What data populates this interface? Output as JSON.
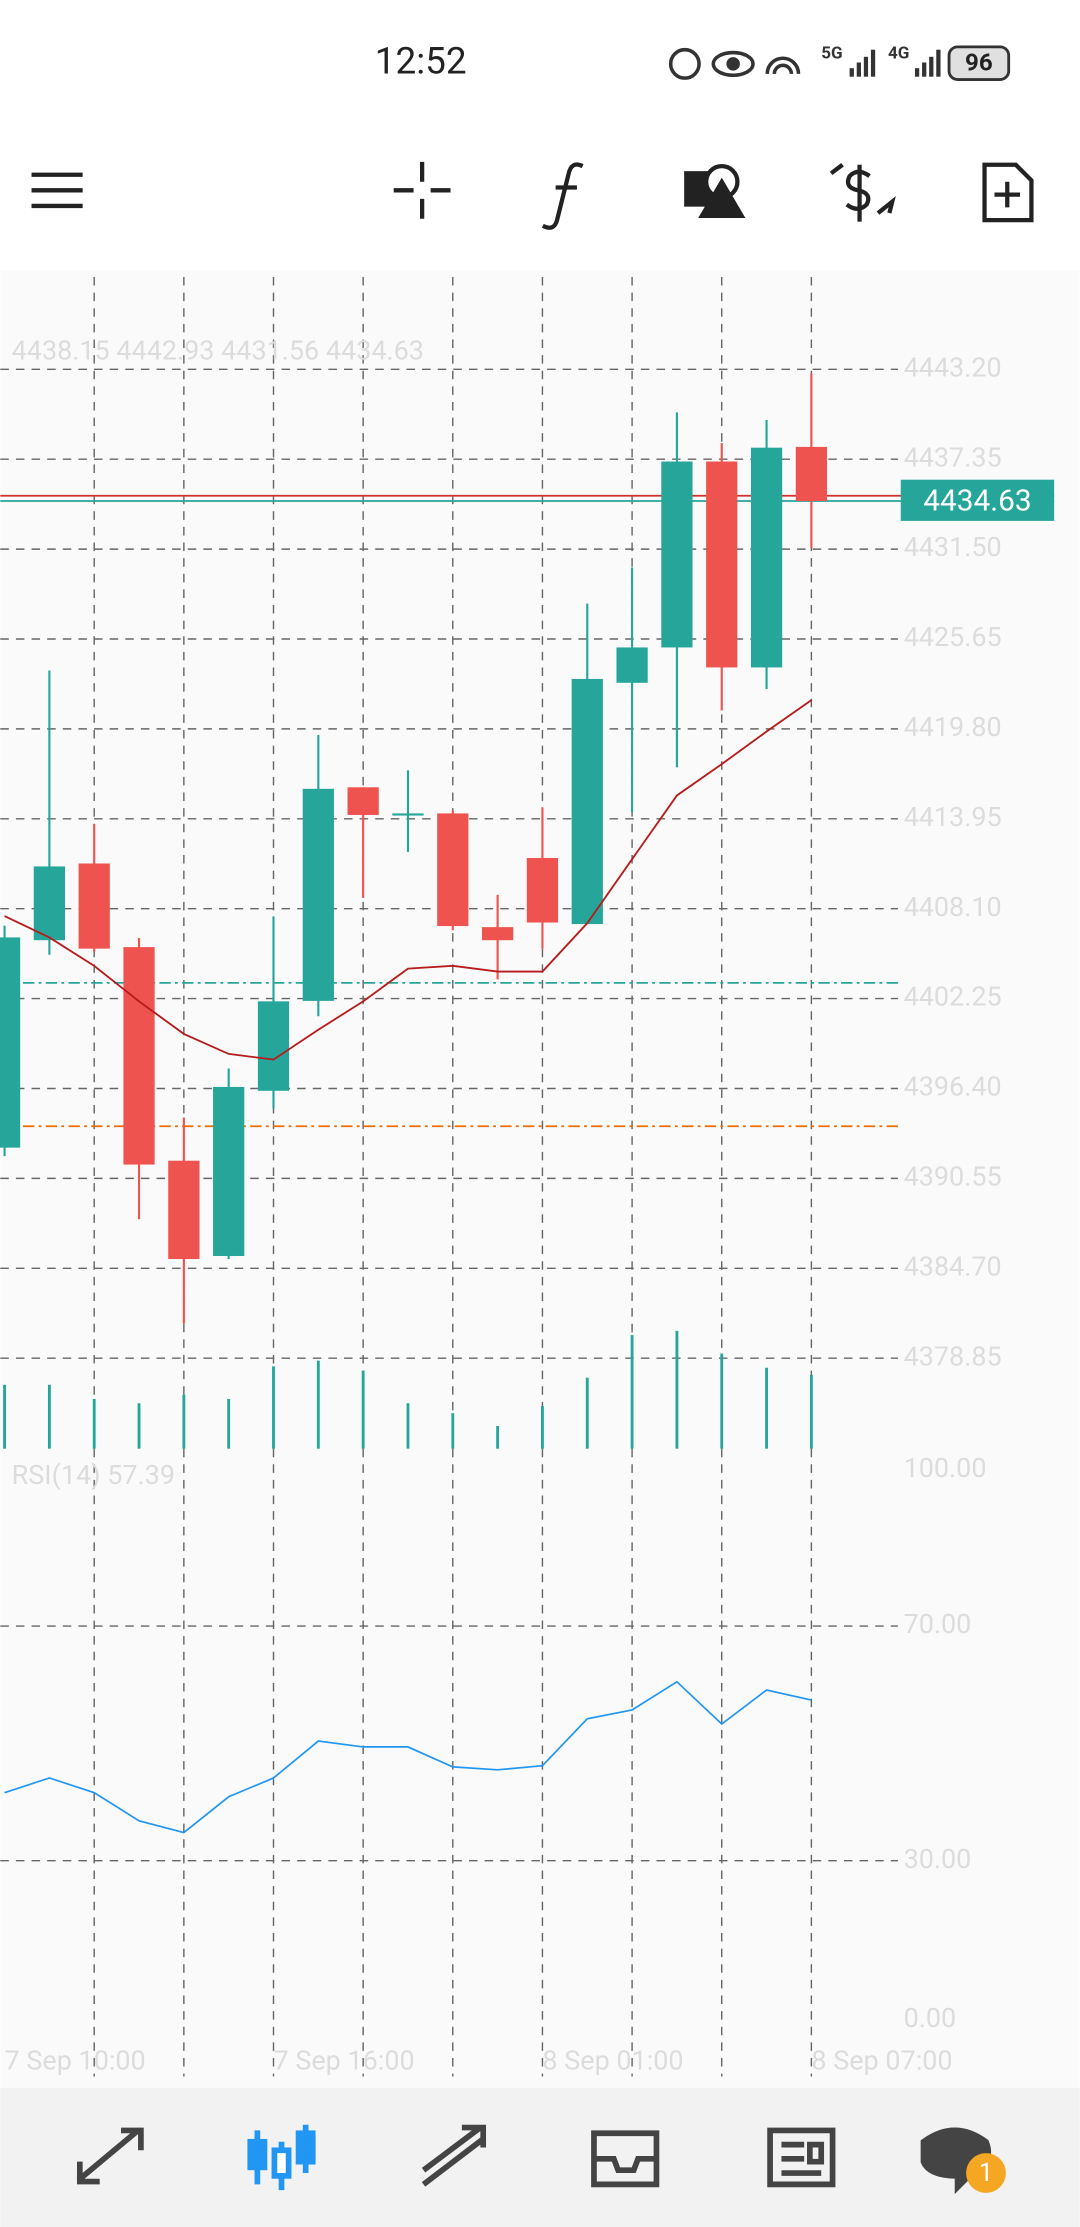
{
  "status_bar": {
    "time": "12:52",
    "network": [
      "5G",
      "4G"
    ],
    "battery": "96"
  },
  "chart_data": [
    {
      "type": "candlestick",
      "title": "4438.15 4442.93 4431.56 4434.63",
      "categories": [
        "7 Sep 10:00",
        null,
        null,
        null,
        null,
        null,
        "7 Sep 16:00",
        null,
        null,
        null,
        null,
        null,
        "8 Sep 01:00",
        null,
        null,
        null,
        null,
        null,
        "8 Sep 07:00"
      ],
      "open": [
        4392.55,
        4406.05,
        4411.04,
        4405.6,
        4391.7,
        4385.5,
        4396.25,
        4402.1,
        4416.0,
        4414.3,
        4414.3,
        4406.9,
        4411.4,
        4407.1,
        4422.8,
        4425.1,
        4437.2,
        4423.8,
        4438.15
      ],
      "high": [
        4407.0,
        4423.6,
        4413.6,
        4406.2,
        4394.5,
        4397.7,
        4407.6,
        4419.4,
        4416.0,
        4417.1,
        4414.5,
        4409.0,
        4414.7,
        4427.95,
        4430.3,
        4440.4,
        4438.4,
        4439.9,
        4442.93
      ],
      "low": [
        4392.0,
        4405.1,
        4405.3,
        4387.9,
        4381.1,
        4385.3,
        4395.1,
        4401.1,
        4408.8,
        4411.8,
        4406.7,
        4403.5,
        4405.5,
        4407.1,
        4414.4,
        4417.3,
        4421.0,
        4422.4,
        4431.56
      ],
      "close": [
        4406.23,
        4410.85,
        4405.5,
        4391.45,
        4385.3,
        4396.5,
        4402.07,
        4415.9,
        4414.2,
        4414.3,
        4406.97,
        4406.05,
        4407.2,
        4423.05,
        4425.1,
        4437.2,
        4423.8,
        4438.1,
        4434.63
      ],
      "up_color": "#26a69a",
      "down_color": "#ef5350",
      "moving_average": {
        "color": "#b71c1c",
        "values": [
          4407.62,
          4406.23,
          4404.38,
          4402.07,
          4399.95,
          4398.65,
          4398.28,
          4400.22,
          4402.07,
          4404.2,
          4404.38,
          4404.01,
          4404.01,
          4407.16,
          4411.32,
          4415.47,
          4417.51,
          4419.63,
          4421.67
        ]
      },
      "order_lines": [
        {
          "value": 4434.97,
          "color": "#d32f2f"
        },
        {
          "value": 4434.63,
          "color": "#26a69a"
        },
        {
          "value": 4403.27,
          "color": "#26a69a"
        },
        {
          "value": 4393.94,
          "color": "#ef6c00"
        }
      ],
      "ylim": [
        4372.96,
        4449.21
      ],
      "yticks": [
        {
          "value": 4443.2,
          "label": "4443.20"
        },
        4437.35,
        {
          "value": 4431.5,
          "label": "4431.50"
        },
        4425.65,
        {
          "value": 4419.8,
          "label": "4419.80"
        },
        4413.95,
        {
          "value": 4408.1,
          "label": "4408.10"
        },
        4402.25,
        {
          "value": 4396.4,
          "label": "4396.40"
        },
        4390.55,
        {
          "value": 4384.7,
          "label": "4384.70"
        },
        4378.85
      ],
      "grid": true
    },
    {
      "type": "bar",
      "color": "#26a69a",
      "values": [
        45,
        45,
        35,
        32,
        38,
        35,
        58,
        62,
        55,
        32,
        25,
        16,
        30,
        50,
        80,
        83,
        67,
        57,
        52
      ],
      "ylim": [
        0,
        100
      ]
    },
    {
      "type": "line",
      "title": "RSI(14) 57.39",
      "color": "#2196f3",
      "values": [
        41.6,
        44.1,
        41.6,
        36.8,
        34.8,
        40.9,
        44.1,
        50.4,
        49.4,
        49.4,
        46.0,
        45.5,
        46.2,
        54.2,
        55.7,
        60.5,
        53.3,
        59.1,
        57.39
      ],
      "ylim": [
        0,
        100
      ],
      "yticks": [
        {
          "value": 100,
          "label": "100.00"
        },
        {
          "value": 70,
          "label": "70.00"
        },
        {
          "value": 30,
          "label": "30.00"
        },
        {
          "value": 0,
          "label": "0.00"
        }
      ],
      "grid": true
    }
  ],
  "bottom_nav": {
    "badge": "1"
  }
}
